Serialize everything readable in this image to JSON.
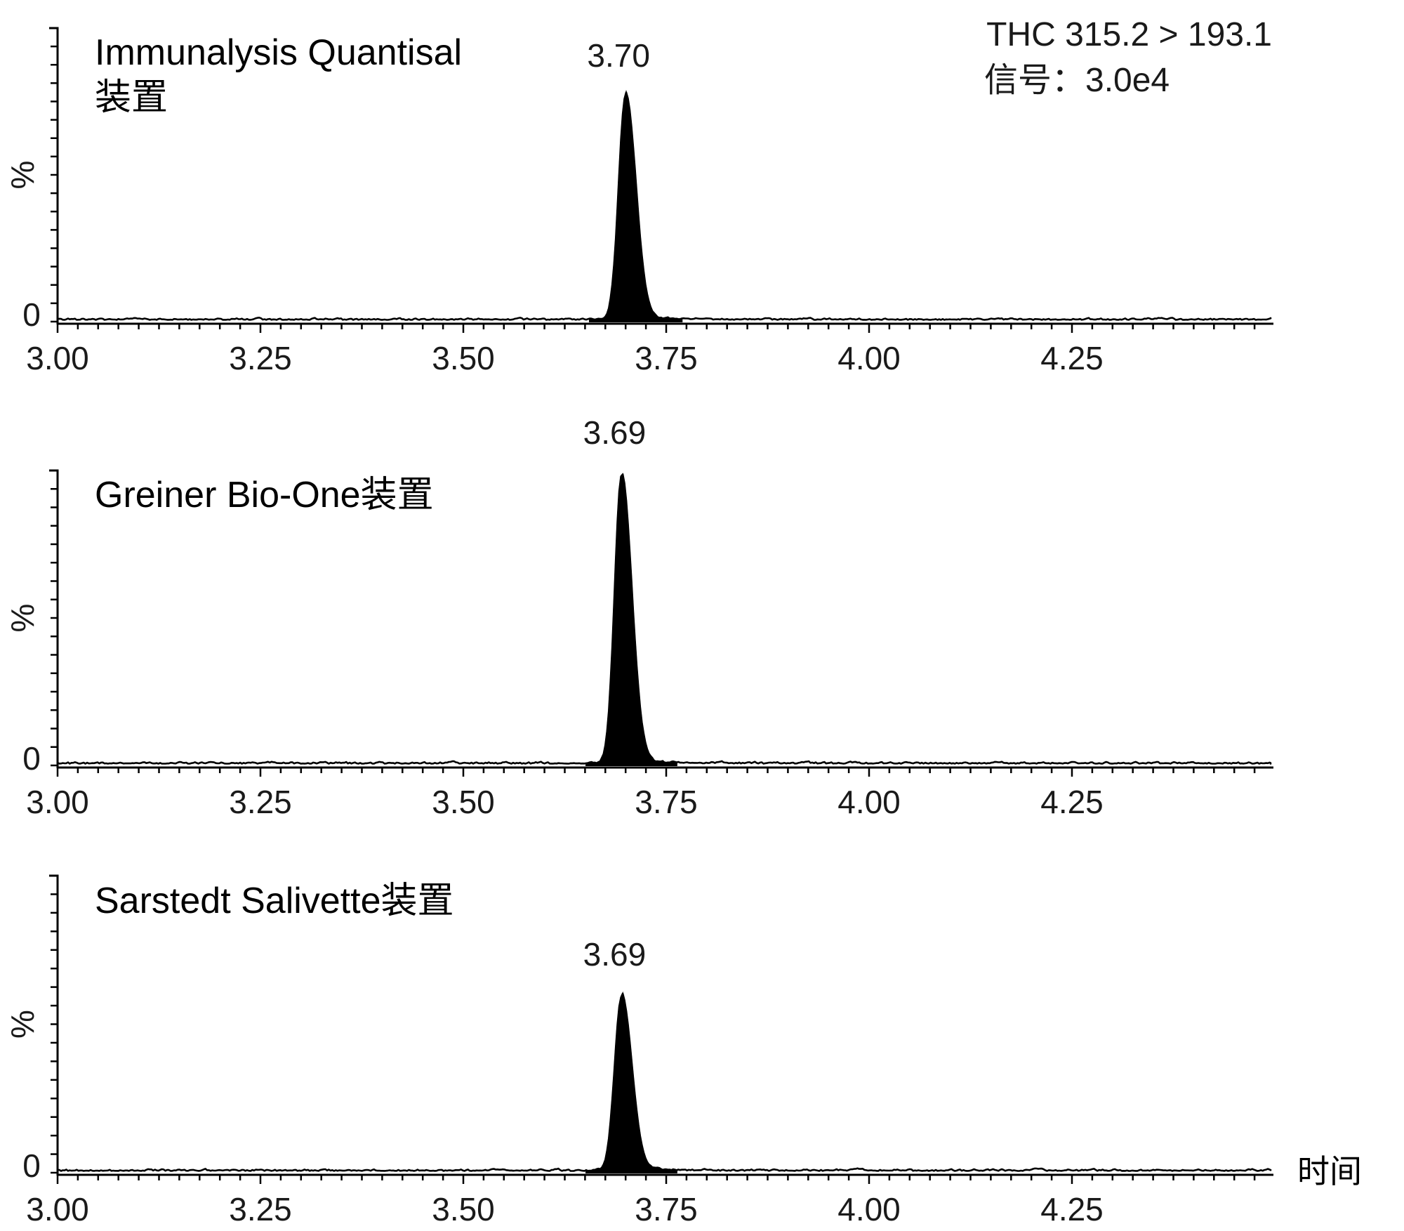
{
  "chart_data": [
    {
      "type": "line",
      "title_lines": [
        "Immunalysis Quantisal",
        "装置"
      ],
      "peak_label": "3.70",
      "peak": {
        "rt": 3.7,
        "height": 0.78,
        "sigma_left": 0.0085,
        "sigma_right": 0.0125
      },
      "x_ticks": [
        "3.00",
        "3.25",
        "3.50",
        "3.75",
        "4.00",
        "4.25"
      ],
      "xlim": [
        3.0,
        4.5
      ],
      "ylabel": "%",
      "y_zero_label": "0",
      "channel": "THC 315.2 > 193.1",
      "signal": "信号：3.0e4"
    },
    {
      "type": "line",
      "title_lines": [
        "Greiner Bio-One装置"
      ],
      "peak_label": "3.69",
      "peak": {
        "rt": 3.695,
        "height": 1.0,
        "sigma_left": 0.0085,
        "sigma_right": 0.0125
      },
      "x_ticks": [
        "3.00",
        "3.25",
        "3.50",
        "3.75",
        "4.00",
        "4.25"
      ],
      "xlim": [
        3.0,
        4.5
      ],
      "ylabel": "%",
      "y_zero_label": "0"
    },
    {
      "type": "line",
      "title_lines": [
        "Sarstedt Salivette装置"
      ],
      "peak_label": "3.69",
      "peak": {
        "rt": 3.695,
        "height": 0.6,
        "sigma_left": 0.0085,
        "sigma_right": 0.0125
      },
      "x_ticks": [
        "3.00",
        "3.25",
        "3.50",
        "3.75",
        "4.00",
        "4.25"
      ],
      "xlim": [
        3.0,
        4.5
      ],
      "ylabel": "%",
      "y_zero_label": "0",
      "xlabel": "时间"
    }
  ]
}
